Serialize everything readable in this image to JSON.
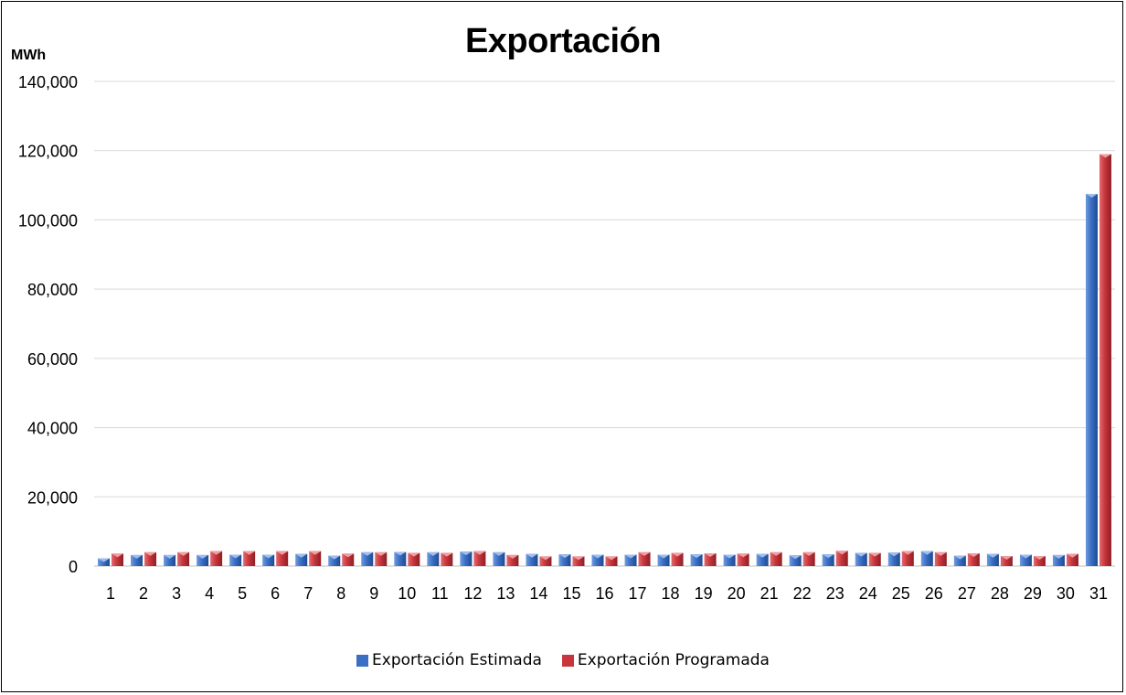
{
  "chart_data": {
    "type": "bar",
    "title": "Exportación",
    "ylabel": "MWh",
    "xlabel": "",
    "ylim": [
      0,
      140000
    ],
    "yticks": [
      0,
      20000,
      40000,
      60000,
      80000,
      100000,
      120000,
      140000
    ],
    "ytick_labels": [
      "0",
      "20,000",
      "40,000",
      "60,000",
      "80,000",
      "100,000",
      "120,000",
      "140,000"
    ],
    "categories": [
      "1",
      "2",
      "3",
      "4",
      "5",
      "6",
      "7",
      "8",
      "9",
      "10",
      "11",
      "12",
      "13",
      "14",
      "15",
      "16",
      "17",
      "18",
      "19",
      "20",
      "21",
      "22",
      "23",
      "24",
      "25",
      "26",
      "27",
      "28",
      "29",
      "30",
      "31"
    ],
    "grid": true,
    "legend_position": "bottom",
    "series": [
      {
        "name": "Exportación Estimada",
        "color": "#3a6fc4",
        "values": [
          2200,
          3200,
          3200,
          3200,
          3300,
          3300,
          3500,
          3000,
          4000,
          4100,
          4000,
          4200,
          4000,
          3500,
          3400,
          3300,
          3300,
          3300,
          3400,
          3300,
          3500,
          3100,
          3400,
          3800,
          3900,
          4300,
          3000,
          3500,
          3300,
          3200,
          107500
        ]
      },
      {
        "name": "Exportación Programada",
        "color": "#c8353c",
        "values": [
          3600,
          4000,
          4000,
          4300,
          4300,
          4300,
          4300,
          3600,
          4000,
          3800,
          3800,
          4300,
          3200,
          2800,
          2800,
          2800,
          4000,
          3800,
          3700,
          3600,
          4000,
          4000,
          4400,
          3800,
          4300,
          4000,
          3700,
          2900,
          2900,
          3500,
          119000
        ]
      }
    ]
  }
}
